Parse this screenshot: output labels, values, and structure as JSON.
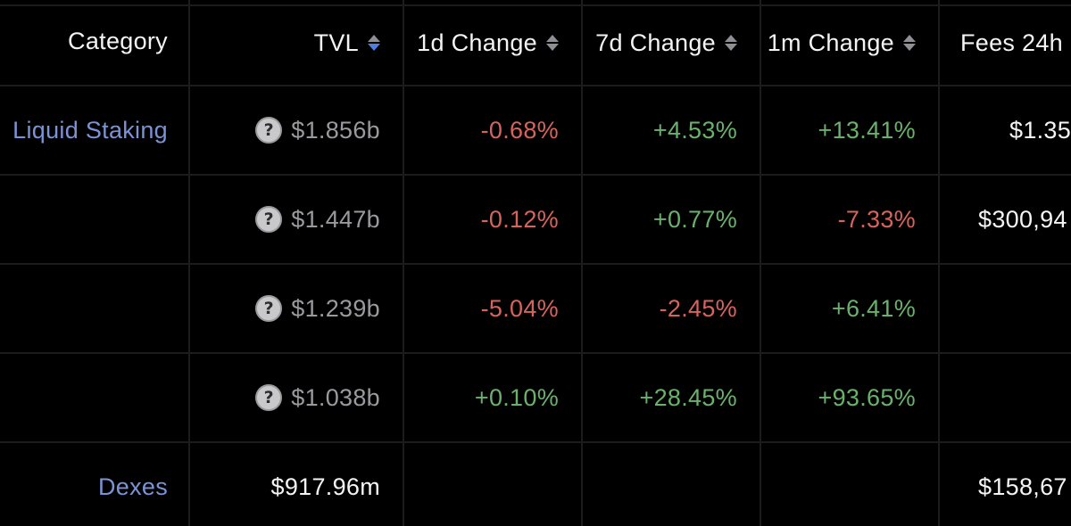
{
  "header": {
    "category": "Category",
    "tvl": "TVL",
    "change_1d": "1d Change",
    "change_7d": "7d Change",
    "change_1m": "1m Change",
    "fees_24h": "Fees 24h"
  },
  "rows": [
    {
      "category": "Liquid Staking",
      "tvl": "$1.856b",
      "change_1d": "-0.68%",
      "change_7d": "+4.53%",
      "change_1m": "+13.41%",
      "fees_24h": "$1.35"
    },
    {
      "category": "",
      "tvl": "$1.447b",
      "change_1d": "-0.12%",
      "change_7d": "+0.77%",
      "change_1m": "-7.33%",
      "fees_24h": "$300,94"
    },
    {
      "category": "",
      "tvl": "$1.239b",
      "change_1d": "-5.04%",
      "change_7d": "-2.45%",
      "change_1m": "+6.41%",
      "fees_24h": ""
    },
    {
      "category": "",
      "tvl": "$1.038b",
      "change_1d": "+0.10%",
      "change_7d": "+28.45%",
      "change_1m": "+93.65%",
      "fees_24h": ""
    },
    {
      "category": "Dexes",
      "tvl": "$917.96m",
      "change_1d": "",
      "change_7d": "",
      "change_1m": "",
      "fees_24h": "$158,67"
    }
  ],
  "icons": {
    "help": "?",
    "sort": "sort-arrows-icon"
  },
  "colors": {
    "background": "#000000",
    "grid": "#1c1c1e",
    "link": "#7b93d4",
    "negative": "#d6635e",
    "positive": "#69b26b",
    "muted": "#9a9a9e",
    "sort_active": "#4f7de3"
  }
}
